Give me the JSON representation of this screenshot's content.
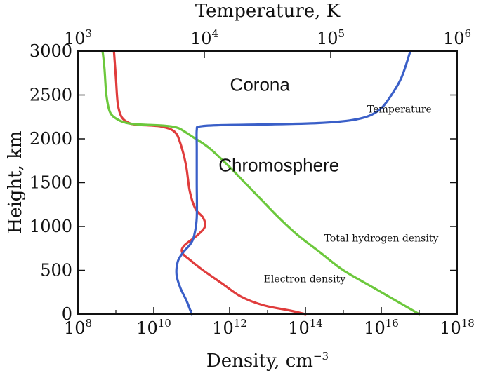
{
  "chart_data": {
    "type": "line",
    "title": "",
    "xlabel_bottom": "Density, cm",
    "xlabel_bottom_sup": "−3",
    "xlabel_top": "Temperature, K",
    "ylabel": "Height, km",
    "x_bottom_scale": "log",
    "x_bottom_lim_exp": [
      8,
      18
    ],
    "x_bottom_ticks": [
      {
        "exp": 8,
        "base": "10",
        "sup": "8"
      },
      {
        "exp": 10,
        "base": "10",
        "sup": "10"
      },
      {
        "exp": 12,
        "base": "10",
        "sup": "12"
      },
      {
        "exp": 14,
        "base": "10",
        "sup": "14"
      },
      {
        "exp": 16,
        "base": "10",
        "sup": "16"
      },
      {
        "exp": 18,
        "base": "10",
        "sup": "18"
      }
    ],
    "x_top_scale": "log",
    "x_top_lim_exp": [
      3,
      6
    ],
    "x_top_ticks": [
      {
        "exp": 3,
        "base": "10",
        "sup": "3"
      },
      {
        "exp": 4,
        "base": "10",
        "sup": "4"
      },
      {
        "exp": 5,
        "base": "10",
        "sup": "5"
      },
      {
        "exp": 6,
        "base": "10",
        "sup": "6"
      }
    ],
    "ylim": [
      0,
      3000
    ],
    "y_ticks": [
      {
        "value": 0,
        "label": "0"
      },
      {
        "value": 500,
        "label": "500"
      },
      {
        "value": 1000,
        "label": "1000"
      },
      {
        "value": 1500,
        "label": "1500"
      },
      {
        "value": 2000,
        "label": "2000"
      },
      {
        "value": 2500,
        "label": "2500"
      },
      {
        "value": 3000,
        "label": "3000"
      }
    ],
    "regions": [
      {
        "label": "Corona",
        "x_exp": 12.8,
        "y": 2550
      },
      {
        "label": "Chromosphere",
        "x_exp": 13.3,
        "y": 1630
      }
    ],
    "series": [
      {
        "name": "Temperature",
        "axis": "top",
        "color": "#3a5fc8",
        "points": [
          [
            0,
            3.9
          ],
          [
            150,
            3.86
          ],
          [
            300,
            3.81
          ],
          [
            450,
            3.78
          ],
          [
            600,
            3.79
          ],
          [
            700,
            3.83
          ],
          [
            800,
            3.89
          ],
          [
            900,
            3.92
          ],
          [
            1100,
            3.94
          ],
          [
            1500,
            3.94
          ],
          [
            1900,
            3.94
          ],
          [
            2100,
            3.94
          ],
          [
            2140,
            3.96
          ],
          [
            2155,
            4.1
          ],
          [
            2165,
            4.5
          ],
          [
            2180,
            4.9
          ],
          [
            2210,
            5.15
          ],
          [
            2260,
            5.3
          ],
          [
            2350,
            5.4
          ],
          [
            2500,
            5.48
          ],
          [
            2700,
            5.56
          ],
          [
            3000,
            5.63
          ]
        ]
      },
      {
        "name": "Electron density",
        "axis": "bottom",
        "color": "#e03c3c",
        "points": [
          [
            0,
            14.0
          ],
          [
            40,
            13.6
          ],
          [
            100,
            12.9
          ],
          [
            200,
            12.3
          ],
          [
            350,
            11.8
          ],
          [
            500,
            11.3
          ],
          [
            620,
            10.95
          ],
          [
            700,
            10.75
          ],
          [
            780,
            10.8
          ],
          [
            900,
            11.15
          ],
          [
            1000,
            11.35
          ],
          [
            1100,
            11.3
          ],
          [
            1200,
            11.1
          ],
          [
            1400,
            10.95
          ],
          [
            1700,
            10.85
          ],
          [
            1950,
            10.7
          ],
          [
            2080,
            10.55
          ],
          [
            2140,
            10.2
          ],
          [
            2160,
            9.6
          ],
          [
            2180,
            9.35
          ],
          [
            2250,
            9.15
          ],
          [
            2400,
            9.05
          ],
          [
            2700,
            9.0
          ],
          [
            3000,
            8.95
          ]
        ]
      },
      {
        "name": "Total hydrogen density",
        "axis": "bottom",
        "color": "#6cc83c",
        "points": [
          [
            0,
            17.0
          ],
          [
            100,
            16.6
          ],
          [
            300,
            15.8
          ],
          [
            500,
            15.0
          ],
          [
            700,
            14.4
          ],
          [
            900,
            13.8
          ],
          [
            1100,
            13.3
          ],
          [
            1300,
            12.85
          ],
          [
            1500,
            12.4
          ],
          [
            1700,
            11.95
          ],
          [
            1900,
            11.45
          ],
          [
            2030,
            11.0
          ],
          [
            2100,
            10.75
          ],
          [
            2130,
            10.6
          ],
          [
            2150,
            10.3
          ],
          [
            2160,
            9.8
          ],
          [
            2170,
            9.45
          ],
          [
            2185,
            9.25
          ],
          [
            2220,
            9.05
          ],
          [
            2300,
            8.85
          ],
          [
            2500,
            8.75
          ],
          [
            2800,
            8.7
          ],
          [
            3000,
            8.65
          ]
        ]
      }
    ],
    "annotations": [
      {
        "text": "Temperature",
        "x_exp": 16.48,
        "y": 2300
      },
      {
        "text": "Total hydrogen density",
        "x_exp": 16.0,
        "y": 830
      },
      {
        "text": "Electron density",
        "x_exp": 13.98,
        "y": 365
      }
    ]
  }
}
